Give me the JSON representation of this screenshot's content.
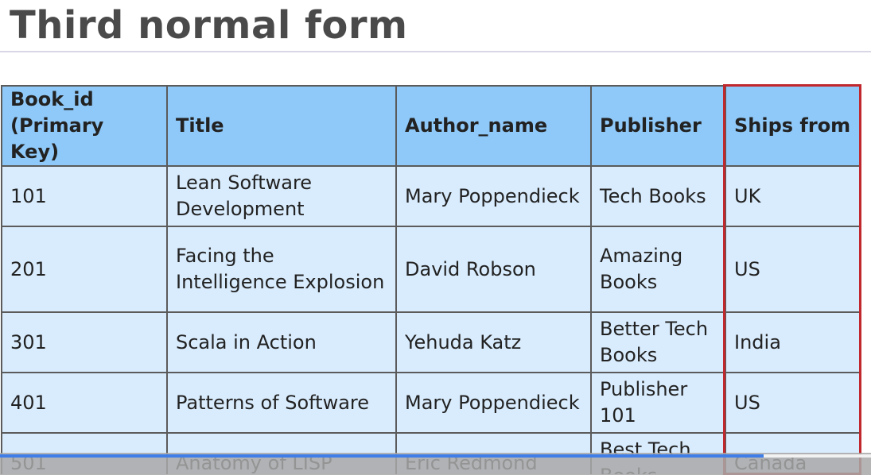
{
  "slide": {
    "title": "Third normal form"
  },
  "table": {
    "headers": [
      "Book_id\n(Primary Key)",
      "Title",
      "Author_name",
      "Publisher",
      "Ships from"
    ],
    "rows": [
      [
        "101",
        "Lean Software Development",
        "Mary Poppendieck",
        "Tech Books",
        "UK"
      ],
      [
        "201",
        "Facing the Intelligence Explosion",
        "David Robson",
        "Amazing Books",
        "US"
      ],
      [
        "301",
        "Scala in Action",
        "Yehuda Katz",
        "Better Tech Books",
        "India"
      ],
      [
        "401",
        "Patterns of Software",
        "Mary Poppendieck",
        "Publisher 101",
        "US"
      ],
      [
        "501",
        "Anatomy of LISP",
        "Eric Redmond",
        "Best Tech Books",
        "Canada"
      ]
    ],
    "highlight_color": "#c0282d",
    "header_color": "#8fc9f9",
    "cell_color": "#d9ecfd"
  },
  "video": {
    "progress_fraction": 0.877
  }
}
